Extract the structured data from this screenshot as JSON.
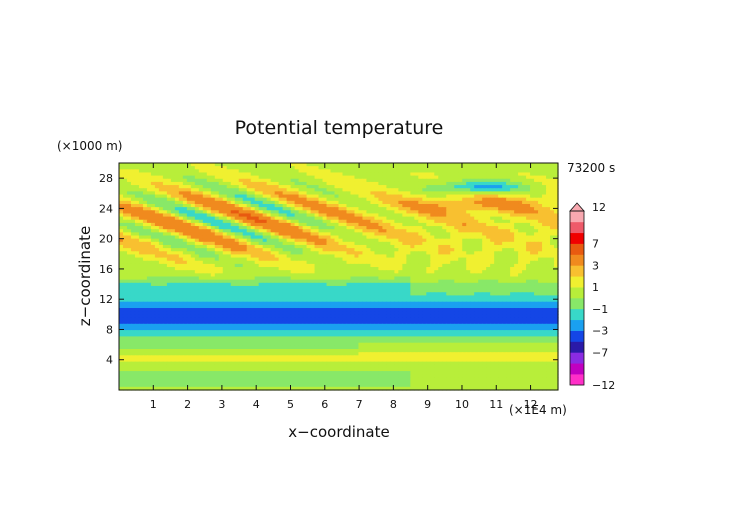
{
  "chart_data": {
    "type": "heatmap",
    "title": "Potential temperature",
    "time_label": "73200 s",
    "xlabel": "x−coordinate",
    "ylabel": "z−coordinate",
    "x_unit": "(×1E4 m)",
    "y_unit": "(×1000 m)",
    "xlim": [
      0,
      12.8
    ],
    "ylim": [
      0,
      30
    ],
    "x_ticks": [
      1,
      2,
      3,
      4,
      5,
      6,
      7,
      8,
      9,
      10,
      11,
      12
    ],
    "x_tick_labels": [
      "1",
      "2",
      "3",
      "4",
      "5",
      "6",
      "7",
      "8",
      "9",
      "10",
      "11",
      "12"
    ],
    "y_ticks": [
      4,
      8,
      12,
      16,
      20,
      24,
      28
    ],
    "y_tick_labels": [
      "4",
      "8",
      "12",
      "16",
      "20",
      "24",
      "28"
    ],
    "colorbar": {
      "levels": [
        -12,
        -11,
        -9,
        -7,
        -5,
        -3,
        -2,
        -1,
        0,
        1,
        2,
        3,
        5,
        7,
        9,
        11,
        12
      ],
      "colors": [
        "#ff2fc8",
        "#c000c0",
        "#8a2be2",
        "#2a1aa8",
        "#1446e6",
        "#1aa0f0",
        "#38d8c8",
        "#88e868",
        "#b8ee3a",
        "#f0f030",
        "#f8c030",
        "#f08a1e",
        "#e85a10",
        "#f00000",
        "#ee5a6a",
        "#f8a8b0"
      ],
      "tick_values": [
        12,
        7,
        3,
        1,
        -1,
        -3,
        -7,
        -12
      ],
      "tick_labels": [
        "12",
        "7",
        "3",
        "1",
        "−1",
        "−3",
        "−7",
        "−12"
      ]
    }
  }
}
